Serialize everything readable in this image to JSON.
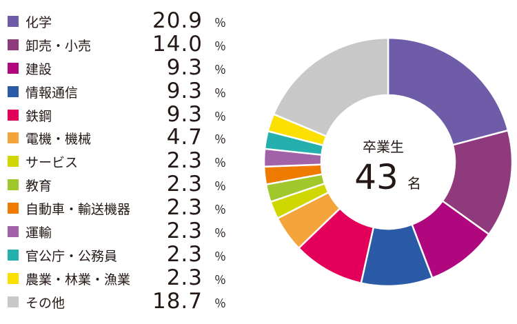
{
  "chart_data": {
    "type": "pie",
    "subtype": "donut",
    "unit": "％",
    "categories": [
      "化学",
      "卸売・小売",
      "建設",
      "情報通信",
      "鉄鋼",
      "電機・機械",
      "サービス",
      "教育",
      "自動車・輸送機器",
      "運輸",
      "官公庁・公務員",
      "農業・林業・漁業",
      "その他"
    ],
    "values": [
      20.9,
      14.0,
      9.3,
      9.3,
      9.3,
      4.7,
      2.3,
      2.3,
      2.3,
      2.3,
      2.3,
      2.3,
      18.7
    ],
    "value_labels": [
      "20.9",
      "14.0",
      "9.3",
      "9.3",
      "9.3",
      "4.7",
      "2.3",
      "2.3",
      "2.3",
      "2.3",
      "2.3",
      "2.3",
      "18.7"
    ],
    "colors": [
      "#6f5ca8",
      "#8e3a7c",
      "#b0077f",
      "#2b5aa6",
      "#e4005a",
      "#f3a53b",
      "#cfd600",
      "#a0c82c",
      "#ee7a00",
      "#a262a8",
      "#24b1ae",
      "#fbdf00",
      "#c8c8c8"
    ],
    "legend_position": "left",
    "center_text": {
      "caption": "卒業生",
      "number": "43",
      "unit": "名"
    }
  }
}
